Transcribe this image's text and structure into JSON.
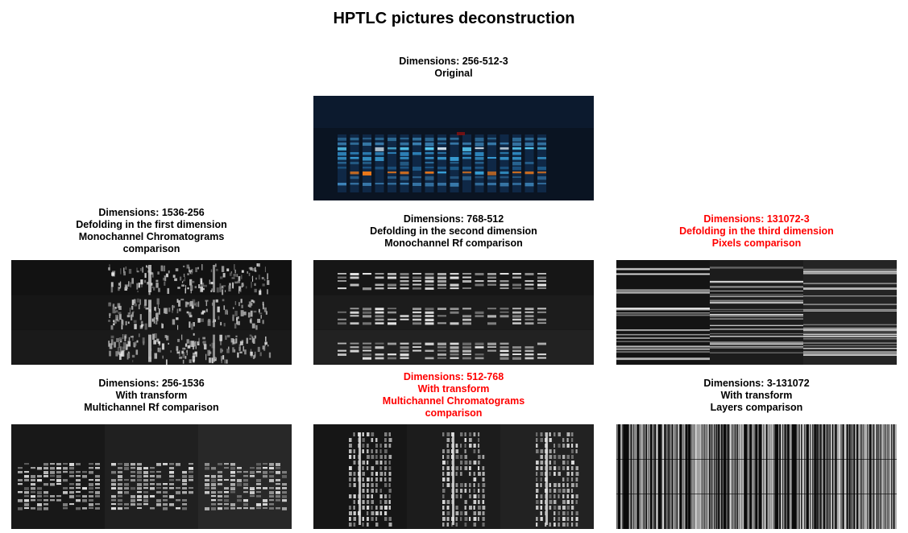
{
  "figure": {
    "title": "HPTLC pictures deconstruction",
    "highlight_color": "#ff0000",
    "default_text_color": "#000000"
  },
  "panels": {
    "original": {
      "lines": [
        "Dimensions: 256-512-3",
        "Original"
      ],
      "highlighted": false
    },
    "defold_first": {
      "lines": [
        "Dimensions: 1536-256",
        "Defolding in the first dimension",
        "Monochannel Chromatograms",
        "comparison"
      ],
      "highlighted": false
    },
    "defold_second": {
      "lines": [
        "Dimensions: 768-512",
        "Defolding in the second dimension",
        "Monochannel Rf comparison"
      ],
      "highlighted": false
    },
    "defold_third": {
      "lines": [
        "Dimensions: 131072-3",
        "Defolding in the third dimension",
        "Pixels comparison"
      ],
      "highlighted": true
    },
    "transform_first": {
      "lines": [
        "Dimensions: 256-1536",
        "With transform",
        "Multichannel Rf comparison"
      ],
      "highlighted": false
    },
    "transform_second": {
      "lines": [
        "Dimensions: 512-768",
        "With transform",
        "Multichannel Chromatograms",
        "comparison"
      ],
      "highlighted": true
    },
    "transform_third": {
      "lines": [
        "Dimensions: 3-131072",
        "With transform",
        "Layers comparison"
      ],
      "highlighted": false
    }
  }
}
